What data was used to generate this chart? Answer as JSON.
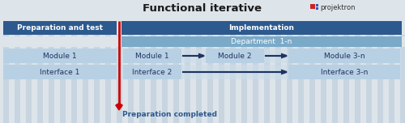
{
  "title": "Functional iterative",
  "background_color": "#dde4ea",
  "dark_blue": "#2d5a8e",
  "mid_blue": "#7aaac8",
  "light_blue": "#b8d0e3",
  "lighter_blue": "#ccdce8",
  "row_bg": "#d0dce8",
  "arrow_color": "#cc0000",
  "dark_arrow_color": "#1e3460",
  "text_white": "#ffffff",
  "text_dark": "#1e3460",
  "logo_text": "projektron",
  "prep_label": "Preparation and test",
  "impl_label": "Implementation",
  "dept_label": "Department  1-n",
  "mod1_left": "Module 1",
  "iface1_left": "Interface 1",
  "mod1_right": "Module 1",
  "mod2_right": "Module 2",
  "mod3_right": "Module 3-n",
  "iface2_right": "Interface 2",
  "iface3_right": "Interface 3-n",
  "prep_completed": "Preparation completed",
  "fig_w": 5.0,
  "fig_h": 1.52,
  "dpi": 100
}
